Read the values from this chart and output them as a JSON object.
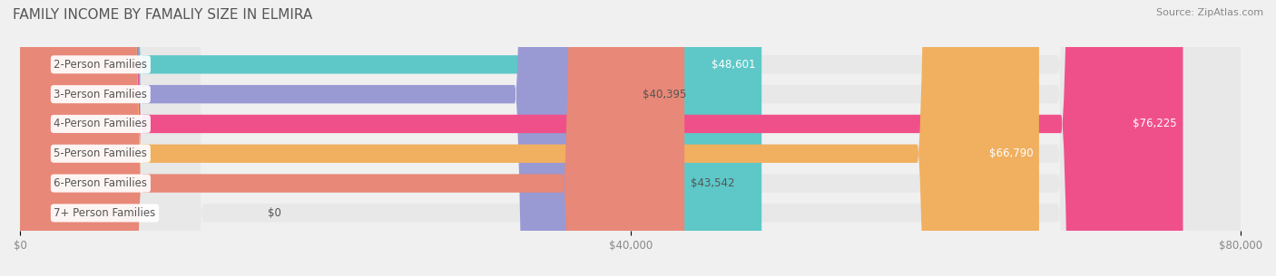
{
  "title": "FAMILY INCOME BY FAMALIY SIZE IN ELMIRA",
  "source": "Source: ZipAtlas.com",
  "categories": [
    "2-Person Families",
    "3-Person Families",
    "4-Person Families",
    "5-Person Families",
    "6-Person Families",
    "7+ Person Families"
  ],
  "values": [
    48601,
    40395,
    76225,
    66790,
    43542,
    0
  ],
  "bar_colors": [
    "#5ec8c8",
    "#9999d4",
    "#f0508a",
    "#f0b060",
    "#e88878",
    "#a8c8e8"
  ],
  "value_labels": [
    "$48,601",
    "$40,395",
    "$76,225",
    "$66,790",
    "$43,542",
    "$0"
  ],
  "xlim": [
    0,
    80000
  ],
  "xticks": [
    0,
    40000,
    80000
  ],
  "xticklabels": [
    "$0",
    "$40,000",
    "$80,000"
  ],
  "background_color": "#f0f0f0",
  "bar_background_color": "#e8e8e8",
  "title_fontsize": 11,
  "label_fontsize": 8.5,
  "value_fontsize": 8.5,
  "figsize": [
    14.06,
    3.05
  ],
  "dpi": 100
}
